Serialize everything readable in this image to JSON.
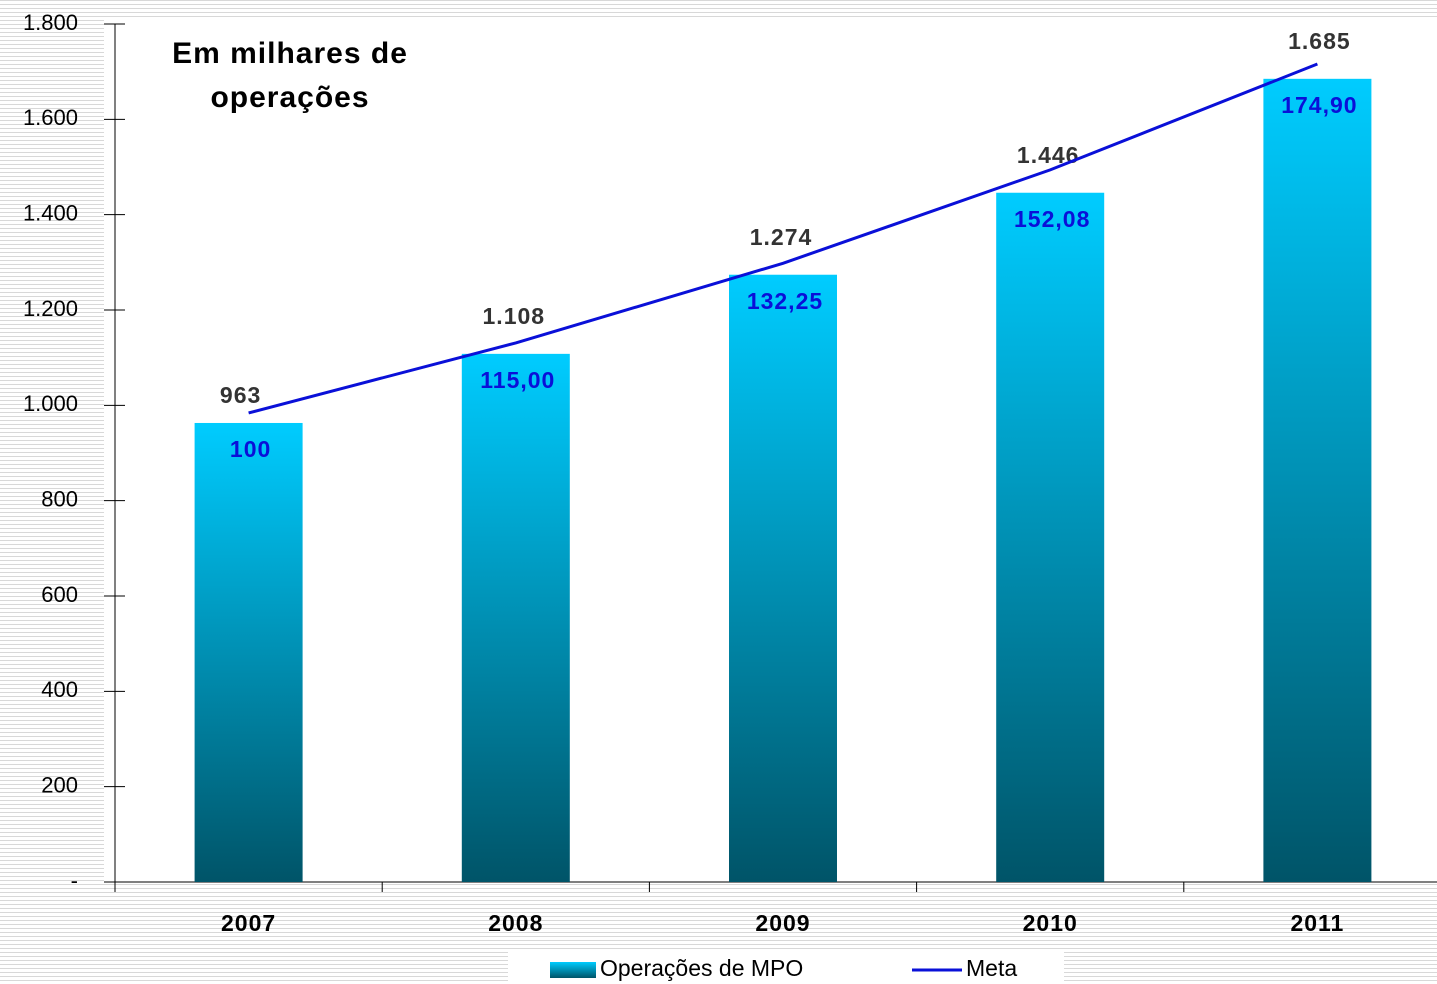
{
  "chart_data": {
    "type": "bar",
    "title": "Em milhares de operações",
    "categories": [
      "2007",
      "2008",
      "2009",
      "2010",
      "2011"
    ],
    "series": [
      {
        "name": "Operações de MPO",
        "type": "bar",
        "color": "#00ccff",
        "values": [
          963,
          1108,
          1274,
          1446,
          1685
        ],
        "value_labels": [
          "963",
          "1.108",
          "1.274",
          "1.446",
          "1.685"
        ]
      },
      {
        "name": "Meta",
        "type": "line",
        "color": "#0a10d8",
        "values": [
          984,
          1131,
          1298,
          1494,
          1716
        ]
      }
    ],
    "index_labels": [
      "100",
      "115,00",
      "132,25",
      "152,08",
      "174,90"
    ],
    "ylim": [
      0,
      1800
    ],
    "yticks": [
      {
        "value": 0,
        "label": "-"
      },
      200,
      400,
      600,
      800,
      {
        "value": 1000,
        "label": "1.000"
      },
      {
        "value": 1200,
        "label": "1.200"
      },
      {
        "value": 1400,
        "label": "1.400"
      },
      {
        "value": 1600,
        "label": "1.600"
      },
      {
        "value": 1800,
        "label": "1.800"
      }
    ],
    "legend": "bottom"
  }
}
